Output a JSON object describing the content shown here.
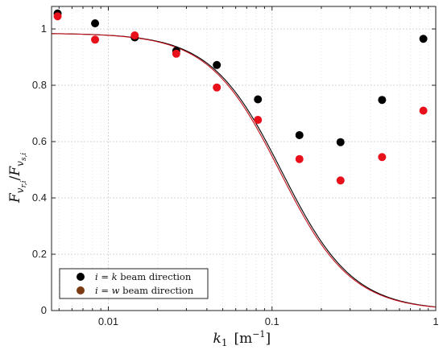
{
  "chart_data": {
    "type": "scatter",
    "x_scale": "log",
    "xlim": [
      0.0045,
      1
    ],
    "ylim": [
      0,
      1.08
    ],
    "grid": true,
    "xlabel_main": "k",
    "xlabel_sub": "1",
    "xlabel_unit": "[m",
    "xlabel_exp": "−1",
    "xlabel_close": "]",
    "ylabel_main": "F",
    "ylabel_sub": "v",
    "ylabel_subsub": "r,i",
    "ylabel_divider": "/",
    "ylabel_main2": "F",
    "ylabel_sub2": "v",
    "ylabel_subsub2": "s,i",
    "x_ticks": [
      {
        "value": 0.01,
        "label": "0.01"
      },
      {
        "value": 0.1,
        "label": "0.1"
      },
      {
        "value": 1,
        "label": "1"
      }
    ],
    "y_ticks": [
      {
        "value": 0,
        "label": "0"
      },
      {
        "value": 0.2,
        "label": "0.2"
      },
      {
        "value": 0.4,
        "label": "0.4"
      },
      {
        "value": 0.6,
        "label": "0.6"
      },
      {
        "value": 0.8,
        "label": "0.8"
      },
      {
        "value": 1,
        "label": "1"
      }
    ],
    "series": [
      {
        "name": "i = k beam direction",
        "color": "#000000",
        "x": [
          0.0049,
          0.0083,
          0.0145,
          0.026,
          0.046,
          0.082,
          0.147,
          0.262,
          0.47,
          0.84
        ],
        "y": [
          1.055,
          1.02,
          0.97,
          0.922,
          0.872,
          0.75,
          0.623,
          0.598,
          0.748,
          0.965
        ]
      },
      {
        "name": "i = w beam direction",
        "color": "#e8101a",
        "x": [
          0.0049,
          0.0083,
          0.0145,
          0.026,
          0.046,
          0.082,
          0.147,
          0.262,
          0.47,
          0.84
        ],
        "y": [
          1.045,
          0.962,
          0.977,
          0.912,
          0.792,
          0.677,
          0.538,
          0.462,
          0.545,
          0.71
        ]
      }
    ],
    "curves": [
      {
        "color": "#000000",
        "k0": 0.115
      },
      {
        "color": "#c2101a",
        "k0": 0.112
      }
    ],
    "curve_scale": 0.985,
    "legend": {
      "placement": "bottom-left",
      "entries": [
        {
          "prefix": "i",
          "eq": " = ",
          "var": "k",
          "suffix": " beam direction",
          "marker_color": "#000000"
        },
        {
          "prefix": "i",
          "eq": " = ",
          "var": "w",
          "suffix": " beam direction",
          "marker_color": "#7a3a12"
        }
      ]
    }
  }
}
